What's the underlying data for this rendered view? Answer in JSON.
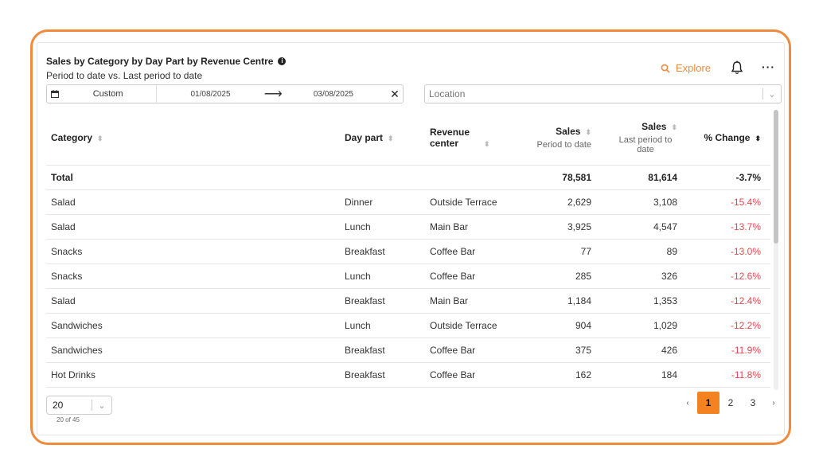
{
  "widget": {
    "title": "Sales by Category by Day Part by Revenue Centre",
    "subtitle": "Period to date vs. Last period to date",
    "explore_label": "Explore"
  },
  "filters": {
    "range_type": "Custom",
    "start_date": "01/08/2025",
    "end_date": "03/08/2025",
    "location_placeholder": "Location"
  },
  "table": {
    "columns": [
      {
        "label": "Category"
      },
      {
        "label": "Day part"
      },
      {
        "label": "Revenue center"
      },
      {
        "label": "Sales",
        "sub": "Period to date"
      },
      {
        "label": "Sales",
        "sub": "Last period to date"
      },
      {
        "label": "% Change"
      }
    ],
    "total": {
      "label": "Total",
      "sales": "78,581",
      "last": "81,614",
      "change": "-3.7%"
    },
    "rows": [
      {
        "category": "Salad",
        "daypart": "Dinner",
        "center": "Outside Terrace",
        "sales": "2,629",
        "last": "3,108",
        "change": "-15.4%"
      },
      {
        "category": "Salad",
        "daypart": "Lunch",
        "center": "Main Bar",
        "sales": "3,925",
        "last": "4,547",
        "change": "-13.7%"
      },
      {
        "category": "Snacks",
        "daypart": "Breakfast",
        "center": "Coffee Bar",
        "sales": "77",
        "last": "89",
        "change": "-13.0%"
      },
      {
        "category": "Snacks",
        "daypart": "Lunch",
        "center": "Coffee Bar",
        "sales": "285",
        "last": "326",
        "change": "-12.6%"
      },
      {
        "category": "Salad",
        "daypart": "Breakfast",
        "center": "Main Bar",
        "sales": "1,184",
        "last": "1,353",
        "change": "-12.4%"
      },
      {
        "category": "Sandwiches",
        "daypart": "Lunch",
        "center": "Outside Terrace",
        "sales": "904",
        "last": "1,029",
        "change": "-12.2%"
      },
      {
        "category": "Sandwiches",
        "daypart": "Breakfast",
        "center": "Coffee Bar",
        "sales": "375",
        "last": "426",
        "change": "-11.9%"
      },
      {
        "category": "Hot Drinks",
        "daypart": "Breakfast",
        "center": "Coffee Bar",
        "sales": "162",
        "last": "184",
        "change": "-11.8%"
      }
    ]
  },
  "pagination": {
    "page_size": "20",
    "count_label": "20 of 45",
    "pages": [
      "1",
      "2",
      "3"
    ],
    "current_page": "1"
  },
  "colors": {
    "accent": "#f08a3c",
    "negative": "#e5484d",
    "active_page": "#f58220"
  }
}
